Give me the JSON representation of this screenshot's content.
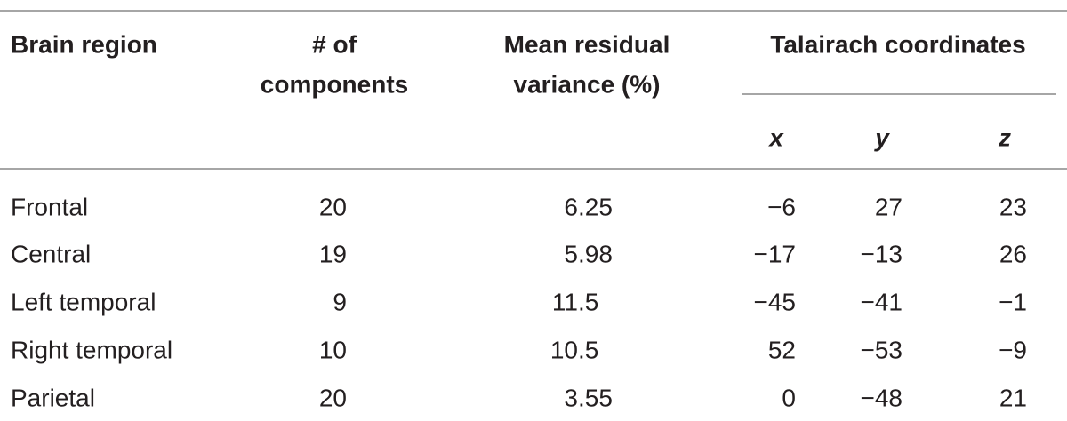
{
  "table": {
    "header": {
      "region": "Brain region",
      "components": [
        "# of",
        "components"
      ],
      "variance": [
        "Mean residual",
        "variance (%)"
      ],
      "coordinates": "Talairach coordinates",
      "axes": [
        "x",
        "y",
        "z"
      ]
    },
    "rows": [
      [
        "Frontal",
        "20",
        "6.25",
        "−6",
        "27",
        "23"
      ],
      [
        "Central",
        "19",
        "5.98",
        "−17",
        "−13",
        "26"
      ],
      [
        "Left temporal",
        "9",
        "11.5",
        "−45",
        "−41",
        "−1"
      ],
      [
        "Right temporal",
        "10",
        "10.5",
        "52",
        "−53",
        "−9"
      ],
      [
        "Parietal",
        "20",
        "3.55",
        "0",
        "−48",
        "21"
      ]
    ]
  }
}
